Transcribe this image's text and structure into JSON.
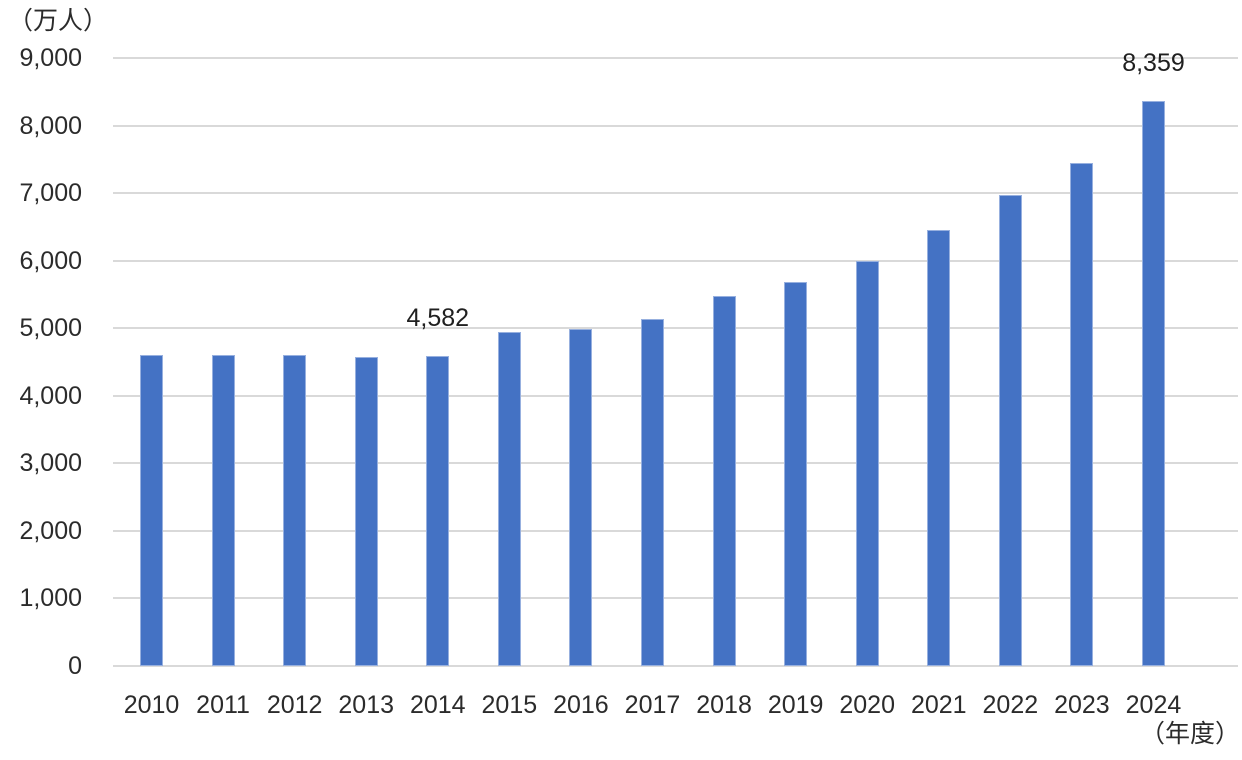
{
  "chart_data": {
    "type": "bar",
    "title": "",
    "y_axis_unit_label": "（万人）",
    "x_axis_unit_label": "（年度）",
    "categories": [
      "2010",
      "2011",
      "2012",
      "2013",
      "2014",
      "2015",
      "2016",
      "2017",
      "2018",
      "2019",
      "2020",
      "2021",
      "2022",
      "2023",
      "2024"
    ],
    "values": [
      4610,
      4610,
      4610,
      4580,
      4582,
      4950,
      4990,
      5130,
      5480,
      5690,
      6000,
      6460,
      6970,
      7450,
      8359
    ],
    "ylim": [
      0,
      9000
    ],
    "ytick_step": 1000,
    "ytick_labels": [
      "0",
      "1,000",
      "2,000",
      "3,000",
      "4,000",
      "5,000",
      "6,000",
      "7,000",
      "8,000",
      "9,000"
    ],
    "grid": "horizontal",
    "legend_position": "none",
    "bar_color": "#4472C4",
    "gridline_color": "#D9D9D9",
    "text_color": "#2B2B2B",
    "data_labels": [
      {
        "index": 4,
        "category": "2014",
        "text": "4,582"
      },
      {
        "index": 14,
        "category": "2024",
        "text": "8,359"
      }
    ]
  }
}
